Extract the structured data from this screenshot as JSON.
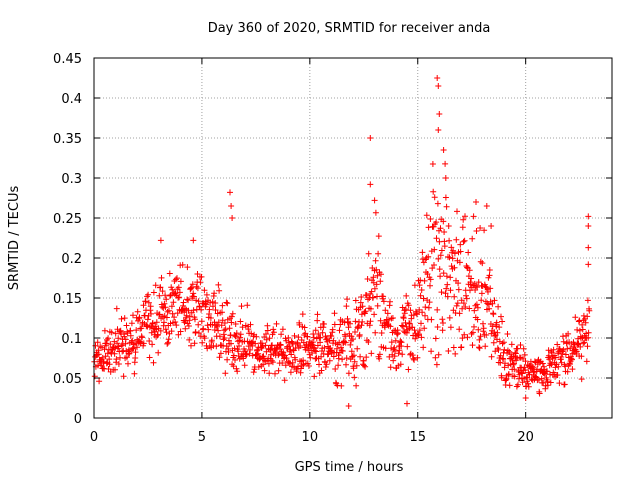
{
  "chart_data": {
    "type": "scatter",
    "title": "Day 360 of 2020, SRMTID for receiver anda",
    "xlabel": "GPS time / hours",
    "ylabel": "SRMTID / TECUs",
    "xlim": [
      0,
      24
    ],
    "ylim": [
      0,
      0.45
    ],
    "xticks": [
      0,
      5,
      10,
      15,
      20
    ],
    "xtick_labels": [
      "0",
      "5",
      "10",
      "15",
      "20"
    ],
    "yticks": [
      0,
      0.05,
      0.1,
      0.15,
      0.2,
      0.25,
      0.3,
      0.35,
      0.4,
      0.45
    ],
    "ytick_labels": [
      "0",
      "0.05",
      "0.1",
      "0.15",
      "0.2",
      "0.25",
      "0.3",
      "0.35",
      "0.4",
      "0.45"
    ],
    "grid": true,
    "marker": "plus",
    "color": "#ff0000",
    "envelope": {
      "description": "approximate per-hour range of the scattered SRMTID samples (hours, [low, high] in TECU)",
      "x": [
        0,
        1,
        2,
        3,
        4,
        5,
        6,
        7,
        8,
        9,
        10,
        11,
        12,
        13,
        14,
        15,
        16,
        17,
        18,
        19,
        20,
        21,
        22,
        23
      ],
      "low": [
        0.035,
        0.04,
        0.05,
        0.06,
        0.07,
        0.06,
        0.05,
        0.04,
        0.04,
        0.035,
        0.035,
        0.03,
        0.02,
        0.05,
        0.05,
        0.04,
        0.04,
        0.05,
        0.05,
        0.03,
        0.025,
        0.025,
        0.03,
        0.05
      ],
      "high": [
        0.11,
        0.14,
        0.15,
        0.19,
        0.2,
        0.19,
        0.16,
        0.14,
        0.13,
        0.13,
        0.13,
        0.14,
        0.16,
        0.26,
        0.13,
        0.2,
        0.36,
        0.26,
        0.24,
        0.11,
        0.09,
        0.09,
        0.13,
        0.16
      ]
    },
    "peaks": [
      {
        "x": 3.1,
        "y": 0.222
      },
      {
        "x": 4.6,
        "y": 0.222
      },
      {
        "x": 6.3,
        "y": 0.282
      },
      {
        "x": 6.35,
        "y": 0.265
      },
      {
        "x": 6.4,
        "y": 0.25
      },
      {
        "x": 12.8,
        "y": 0.35
      },
      {
        "x": 12.8,
        "y": 0.292
      },
      {
        "x": 13.0,
        "y": 0.272
      },
      {
        "x": 15.9,
        "y": 0.425
      },
      {
        "x": 15.95,
        "y": 0.415
      },
      {
        "x": 16.0,
        "y": 0.38
      },
      {
        "x": 15.95,
        "y": 0.36
      },
      {
        "x": 16.2,
        "y": 0.335
      },
      {
        "x": 16.3,
        "y": 0.3
      },
      {
        "x": 17.7,
        "y": 0.27
      },
      {
        "x": 18.2,
        "y": 0.265
      },
      {
        "x": 18.4,
        "y": 0.24
      },
      {
        "x": 22.9,
        "y": 0.252
      },
      {
        "x": 22.9,
        "y": 0.24
      },
      {
        "x": 22.9,
        "y": 0.213
      },
      {
        "x": 22.9,
        "y": 0.192
      },
      {
        "x": 14.5,
        "y": 0.018
      },
      {
        "x": 11.8,
        "y": 0.015
      },
      {
        "x": 20.0,
        "y": 0.025
      }
    ]
  }
}
